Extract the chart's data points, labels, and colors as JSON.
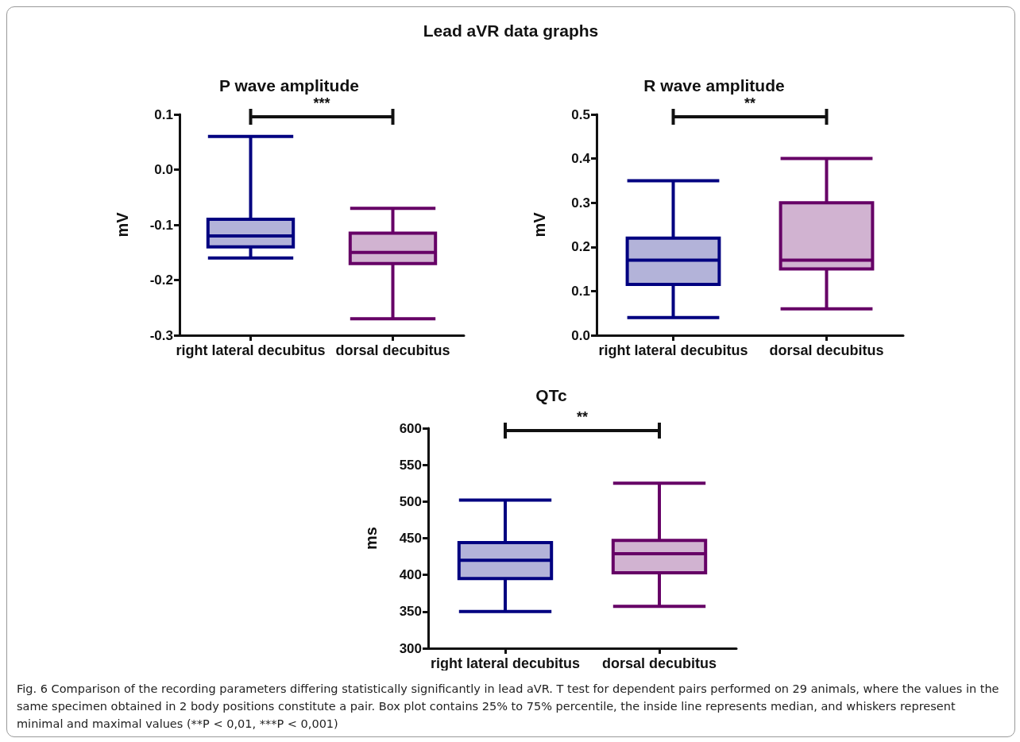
{
  "chart_data": [
    {
      "type": "box",
      "title": "P wave amplitude",
      "ylabel": "mV",
      "categories": [
        "right lateral decubitus",
        "dorsal decubitus"
      ],
      "colors": [
        "#000080",
        "#660066"
      ],
      "boxes": [
        {
          "low": -0.16,
          "q1": -0.14,
          "median": -0.12,
          "q3": -0.09,
          "high": 0.06
        },
        {
          "low": -0.27,
          "q1": -0.17,
          "median": -0.15,
          "q3": -0.115,
          "high": -0.07
        }
      ],
      "ylim": [
        -0.3,
        0.1
      ],
      "yticks": [
        -0.3,
        -0.2,
        -0.1,
        {
          "value": 0,
          "label": "0.0"
        },
        0.1
      ],
      "grid": false,
      "annotations": [
        "Lead aVR data graphs",
        "***"
      ]
    },
    {
      "type": "box",
      "title": "R wave amplitude",
      "ylabel": "mV",
      "categories": [
        "right lateral decubitus",
        "dorsal decubitus"
      ],
      "colors": [
        "#000080",
        "#660066"
      ],
      "boxes": [
        {
          "low": 0.04,
          "q1": 0.115,
          "median": 0.17,
          "q3": 0.22,
          "high": 0.35
        },
        {
          "low": 0.06,
          "q1": 0.15,
          "median": 0.17,
          "q3": 0.3,
          "high": 0.4
        }
      ],
      "ylim": [
        0,
        0.5
      ],
      "yticks": [
        {
          "value": 0,
          "label": "0.0"
        },
        0.1,
        0.2,
        0.3,
        0.4,
        0.5
      ],
      "grid": false,
      "annotations": [
        "**"
      ]
    },
    {
      "type": "box",
      "title": "QTc",
      "ylabel": "ms",
      "categories": [
        "right lateral decubitus",
        "dorsal decubitus"
      ],
      "colors": [
        "#000080",
        "#660066"
      ],
      "boxes": [
        {
          "low": 350,
          "q1": 395,
          "median": 420,
          "q3": 444,
          "high": 502
        },
        {
          "low": 357,
          "q1": 403,
          "median": 429,
          "q3": 447,
          "high": 525
        }
      ],
      "ylim": [
        300,
        600
      ],
      "yticks": [
        300,
        350,
        400,
        450,
        500,
        550,
        600
      ],
      "grid": false,
      "annotations": [
        "**",
        "Fig. 6  Comparison of the recording parameters differing statistically significantly in lead aVR. T test for dependent pairs performed on 29 animals, where the values in the same specimen obtained in 2 body positions constitute a pair. Box plot contains 25% to 75% percentile, the inside line represents median, and whiskers represent minimal and maximal values (**P < 0,01, ***P < 0,001)"
      ]
    }
  ]
}
